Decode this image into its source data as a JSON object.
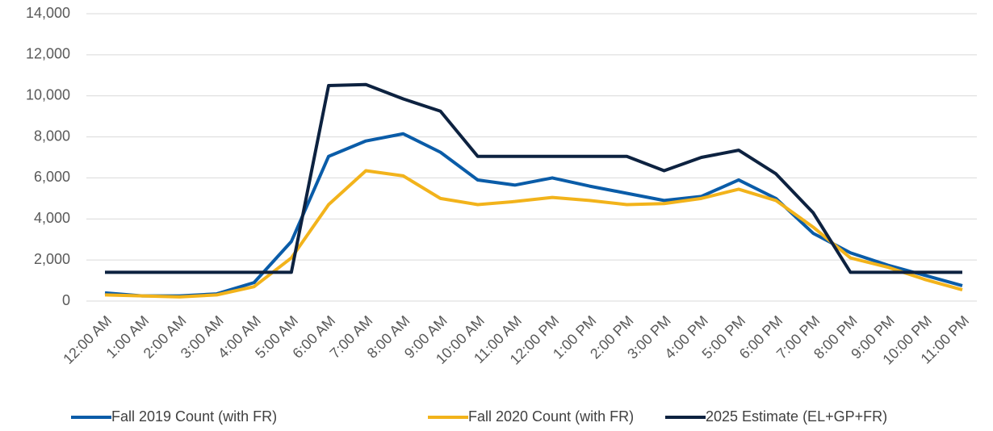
{
  "chart_data": {
    "type": "line",
    "categories": [
      "12:00 AM",
      "1:00 AM",
      "2:00 AM",
      "3:00 AM",
      "4:00 AM",
      "5:00 AM",
      "6:00 AM",
      "7:00 AM",
      "8:00 AM",
      "9:00 AM",
      "10:00 AM",
      "11:00 AM",
      "12:00 PM",
      "1:00 PM",
      "2:00 PM",
      "3:00 PM",
      "4:00 PM",
      "5:00 PM",
      "6:00 PM",
      "7:00 PM",
      "8:00 PM",
      "9:00 PM",
      "10:00 PM",
      "11:00 PM"
    ],
    "series": [
      {
        "name": "Fall 2019 Count (with FR)",
        "color": "#0a5ca8",
        "values": [
          400,
          250,
          250,
          350,
          900,
          2900,
          7050,
          7800,
          8150,
          7250,
          5900,
          5650,
          6000,
          5600,
          5250,
          4900,
          5100,
          5900,
          5000,
          3300,
          2350,
          1750,
          1250,
          750
        ]
      },
      {
        "name": "Fall 2020 Count (with FR)",
        "color": "#f2b31b",
        "values": [
          300,
          250,
          200,
          300,
          700,
          2100,
          4700,
          6350,
          6100,
          5000,
          4700,
          4850,
          5050,
          4900,
          4700,
          4750,
          5000,
          5450,
          4900,
          3600,
          2100,
          1650,
          1050,
          550
        ]
      },
      {
        "name": "2025 Estimate (EL+GP+FR)",
        "color": "#0d2240",
        "values": [
          1400,
          1400,
          1400,
          1400,
          1400,
          1400,
          10500,
          10550,
          9850,
          9250,
          7050,
          7050,
          7050,
          7050,
          7050,
          6350,
          7000,
          7350,
          6200,
          4300,
          1400,
          1400,
          1400,
          1400
        ]
      }
    ],
    "ylim": [
      0,
      14000
    ],
    "yticks": [
      0,
      {
        "value": 2000,
        "label": "2,000"
      },
      {
        "value": 4000,
        "label": "4,000"
      },
      {
        "value": 6000,
        "label": "6,000"
      },
      {
        "value": 8000,
        "label": "8,000"
      },
      {
        "value": 10000,
        "label": "10,000"
      },
      {
        "value": 12000,
        "label": "12,000"
      },
      {
        "value": 14000,
        "label": "14,000"
      }
    ],
    "grid": true,
    "legend": "bottom"
  }
}
